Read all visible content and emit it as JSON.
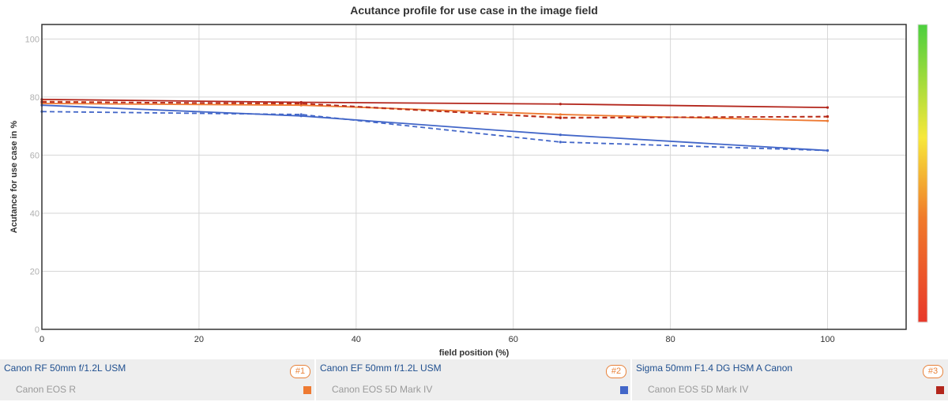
{
  "chart_data": {
    "type": "line",
    "title": "Acutance profile for use case in the image field",
    "xlabel": "field position (%)",
    "ylabel": "Acutance for use case in %",
    "xlim": [
      0,
      110
    ],
    "ylim": [
      0,
      105
    ],
    "xticks": [
      0,
      20,
      40,
      60,
      80,
      100
    ],
    "yticks": [
      0,
      20,
      40,
      60,
      80,
      100
    ],
    "grid": true,
    "colorbar": {
      "gradient": [
        "#e8382a",
        "#f07a2a",
        "#f7e83a",
        "#4ccf3e"
      ]
    },
    "series": [
      {
        "color": "#ee7a32",
        "dash": false,
        "x": [
          0,
          33,
          66,
          100
        ],
        "y": [
          77.8,
          77.2,
          74.0,
          71.8
        ]
      },
      {
        "color": "#ee7a32",
        "dash": true,
        "x": [
          0,
          33,
          66,
          100
        ],
        "y": [
          78.5,
          77.5,
          73.0,
          73.2
        ]
      },
      {
        "color": "#4266c8",
        "dash": false,
        "x": [
          0,
          33,
          66,
          100
        ],
        "y": [
          77.2,
          73.5,
          67.0,
          61.6
        ]
      },
      {
        "color": "#4266c8",
        "dash": true,
        "x": [
          0,
          33,
          66,
          100
        ],
        "y": [
          75.0,
          74.0,
          64.5,
          61.6
        ]
      },
      {
        "color": "#b3261c",
        "dash": false,
        "x": [
          0,
          33,
          66,
          100
        ],
        "y": [
          79.2,
          78.2,
          77.6,
          76.4
        ]
      },
      {
        "color": "#b3261c",
        "dash": true,
        "x": [
          0,
          33,
          66,
          100
        ],
        "y": [
          78.3,
          77.8,
          72.8,
          73.3
        ]
      }
    ]
  },
  "legend": [
    {
      "lens": "Canon RF 50mm f/1.2L USM",
      "camera": "Canon EOS R",
      "badge": "#1",
      "color": "#ee7a32"
    },
    {
      "lens": "Canon EF 50mm f/1.2L USM",
      "camera": "Canon EOS 5D Mark IV",
      "badge": "#2",
      "color": "#4266c8"
    },
    {
      "lens": "Sigma 50mm F1.4 DG HSM A Canon",
      "camera": "Canon EOS 5D Mark IV",
      "badge": "#3",
      "color": "#b3261c"
    }
  ]
}
